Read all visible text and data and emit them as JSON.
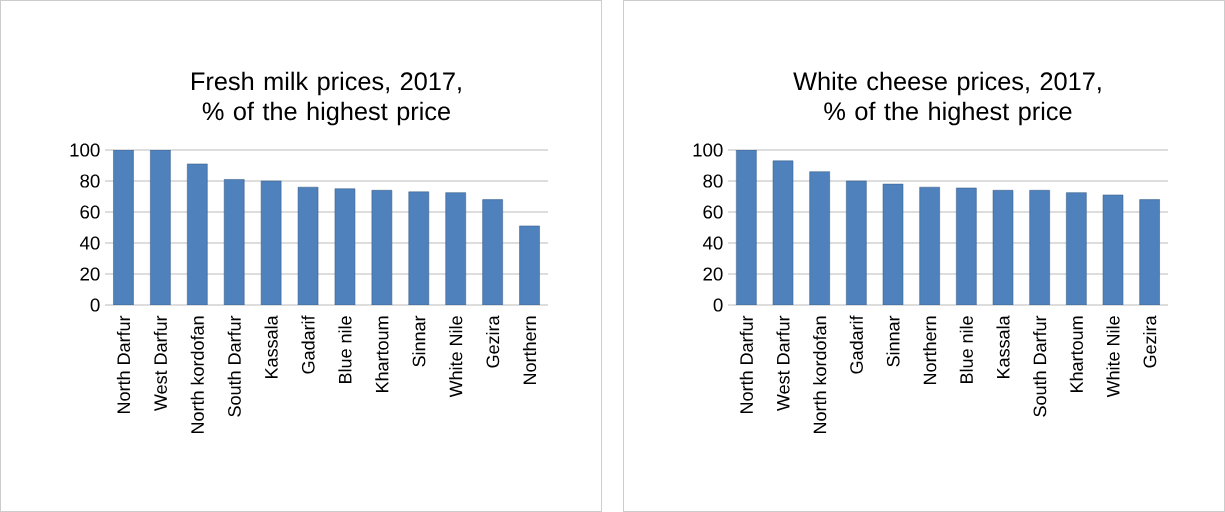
{
  "chart_data": [
    {
      "type": "bar",
      "title": "Fresh milk prices, 2017, % of the highest price",
      "categories": [
        "North Darfur",
        "West Darfur",
        "North kordofan",
        "South Darfur",
        "Kassala",
        "Gadarif",
        "Blue nile",
        "Khartoum",
        "Sinnar",
        "White Nile",
        "Gezira",
        "Northern"
      ],
      "values": [
        100,
        100,
        91,
        81,
        80,
        76,
        75,
        74,
        73,
        72.5,
        68,
        51
      ],
      "color": "#4f81bd",
      "ylim": [
        0,
        100
      ],
      "yticks": [
        0,
        20,
        40,
        60,
        80,
        100
      ],
      "grid": "y"
    },
    {
      "type": "bar",
      "title": "White cheese prices, 2017, % of the highest price",
      "categories": [
        "North Darfur",
        "West Darfur",
        "North kordofan",
        "Gadarif",
        "Sinnar",
        "Northern",
        "Blue nile",
        "Kassala",
        "South Darfur",
        "Khartoum",
        "White Nile",
        "Gezira"
      ],
      "values": [
        100,
        93,
        86,
        80,
        78,
        76,
        75.5,
        74,
        74,
        72.5,
        71,
        68
      ],
      "color": "#4f81bd",
      "ylim": [
        0,
        100
      ],
      "yticks": [
        0,
        20,
        40,
        60,
        80,
        100
      ],
      "grid": "y"
    }
  ]
}
